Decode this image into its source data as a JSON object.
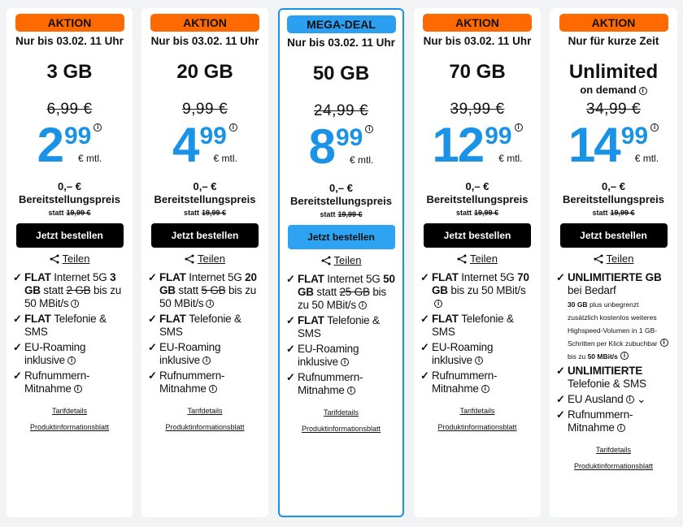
{
  "colors": {
    "accent_orange": "#ff6a00",
    "accent_blue": "#1a93e6"
  },
  "cards": [
    {
      "badge": "AKTION",
      "until": "Nur bis 03.02. 11 Uhr",
      "volume": "3 GB",
      "old_price": "6,99 €",
      "price_euro": "2",
      "price_cent": "99",
      "per": "€ mtl.",
      "fee": "0,– €",
      "fee_label": "Bereitstellungspreis",
      "statt": "statt",
      "statt_price": "19,99 €",
      "order": "Jetzt bestellen",
      "share": "Teilen",
      "features": [
        [
          {
            "t": "FLAT ",
            "b": 1
          },
          {
            "t": "Internet 5G "
          },
          {
            "t": "3 GB",
            "b": 1
          },
          {
            "t": " statt "
          },
          {
            "t": "2 GB",
            "s": 1
          },
          {
            "t": " bis zu 50 MBit/s"
          },
          {
            "i": 1
          }
        ],
        [
          {
            "t": "FLAT ",
            "b": 1
          },
          {
            "t": "Telefonie & SMS"
          }
        ],
        [
          {
            "t": "EU-Roaming inklusive"
          },
          {
            "i": 1
          }
        ],
        [
          {
            "t": "Rufnummern-Mitnahme"
          },
          {
            "i": 1
          }
        ]
      ],
      "links": [
        "Tarifdetails",
        "Produktinformationsblatt"
      ]
    },
    {
      "badge": "AKTION",
      "until": "Nur bis 03.02. 11 Uhr",
      "volume": "20 GB",
      "old_price": "9,99 €",
      "price_euro": "4",
      "price_cent": "99",
      "per": "€ mtl.",
      "fee": "0,– €",
      "fee_label": "Bereitstellungspreis",
      "statt": "statt",
      "statt_price": "19,99 €",
      "order": "Jetzt bestellen",
      "share": "Teilen",
      "features": [
        [
          {
            "t": "FLAT ",
            "b": 1
          },
          {
            "t": "Internet 5G "
          },
          {
            "t": "20 GB",
            "b": 1
          },
          {
            "t": " statt "
          },
          {
            "t": "5 GB",
            "s": 1
          },
          {
            "t": " bis zu 50 MBit/s"
          },
          {
            "i": 1
          }
        ],
        [
          {
            "t": "FLAT ",
            "b": 1
          },
          {
            "t": "Telefonie & SMS"
          }
        ],
        [
          {
            "t": "EU-Roaming inklusive"
          },
          {
            "i": 1
          }
        ],
        [
          {
            "t": "Rufnummern-Mitnahme"
          },
          {
            "i": 1
          }
        ]
      ],
      "links": [
        "Tarifdetails",
        "Produktinformationsblatt"
      ]
    },
    {
      "badge": "MEGA-DEAL",
      "highlight": true,
      "until": "Nur bis 03.02. 11 Uhr",
      "volume": "50 GB",
      "old_price": "24,99 €",
      "price_euro": "8",
      "price_cent": "99",
      "per": "€ mtl.",
      "fee": "0,– €",
      "fee_label": "Bereitstellungspreis",
      "statt": "statt",
      "statt_price": "19,99 €",
      "order": "Jetzt bestellen",
      "share": "Teilen",
      "features": [
        [
          {
            "t": "FLAT ",
            "b": 1
          },
          {
            "t": "Internet 5G "
          },
          {
            "t": "50 GB",
            "b": 1
          },
          {
            "t": " statt "
          },
          {
            "t": "25 GB",
            "s": 1
          },
          {
            "t": " bis zu 50 MBit/s"
          },
          {
            "i": 1
          }
        ],
        [
          {
            "t": "FLAT ",
            "b": 1
          },
          {
            "t": "Telefonie & SMS"
          }
        ],
        [
          {
            "t": "EU-Roaming inklusive"
          },
          {
            "i": 1
          }
        ],
        [
          {
            "t": "Rufnummern-Mitnahme"
          },
          {
            "i": 1
          }
        ]
      ],
      "links": [
        "Tarifdetails",
        "Produktinformationsblatt"
      ]
    },
    {
      "badge": "AKTION",
      "until": "Nur bis 03.02. 11 Uhr",
      "volume": "70 GB",
      "old_price": "39,99 €",
      "price_euro": "12",
      "price_cent": "99",
      "per": "€ mtl.",
      "fee": "0,– €",
      "fee_label": "Bereitstellungspreis",
      "statt": "statt",
      "statt_price": "19,99 €",
      "order": "Jetzt bestellen",
      "share": "Teilen",
      "features": [
        [
          {
            "t": "FLAT ",
            "b": 1
          },
          {
            "t": "Internet 5G "
          },
          {
            "t": "70 GB",
            "b": 1
          },
          {
            "t": " bis zu 50 MBit/s"
          },
          {
            "i": 1
          }
        ],
        [
          {
            "t": "FLAT ",
            "b": 1
          },
          {
            "t": "Telefonie & SMS"
          }
        ],
        [
          {
            "t": "EU-Roaming inklusive"
          },
          {
            "i": 1
          }
        ],
        [
          {
            "t": "Rufnummern-Mitnahme"
          },
          {
            "i": 1
          }
        ]
      ],
      "links": [
        "Tarifdetails",
        "Produktinformationsblatt"
      ]
    },
    {
      "badge": "AKTION",
      "until": "Nur für kurze Zeit",
      "volume": "Unlimited",
      "on_demand": "on demand",
      "old_price": "34,99 €",
      "price_euro": "14",
      "price_cent": "99",
      "per": "€ mtl.",
      "fee": "0,– €",
      "fee_label": "Bereitstellungspreis",
      "statt": "statt",
      "statt_price": "19,99 €",
      "order": "Jetzt bestellen",
      "share": "Teilen",
      "features": [
        [
          {
            "t": "UNLIMITIERTE GB",
            "b": 1
          },
          {
            "t": " bei Bedarf"
          },
          {
            "br": 1
          },
          {
            "t": "30 GB",
            "b": 1,
            "sm": 1
          },
          {
            "t": " plus unbegrenzt zusätzlich kostenlos weiteres Highspeed-Volumen in 1 GB-Schritten per Klick zubuchbar",
            "sm": 1
          },
          {
            "i": 1
          },
          {
            "br": 1
          },
          {
            "t": "bis zu ",
            "sm": 1
          },
          {
            "t": "50 MBit/s",
            "b": 1,
            "sm": 1
          },
          {
            "i": 1
          }
        ],
        [
          {
            "t": "UNLIMITIERTE",
            "b": 1
          },
          {
            "t": " Telefonie & SMS"
          }
        ],
        [
          {
            "t": "EU Ausland"
          },
          {
            "i": 1
          },
          {
            "t": " ⌄"
          }
        ],
        [
          {
            "t": "Rufnummern-Mitnahme"
          },
          {
            "i": 1
          }
        ]
      ],
      "links": [
        "Tarifdetails",
        "Produktinformationsblatt"
      ]
    }
  ]
}
